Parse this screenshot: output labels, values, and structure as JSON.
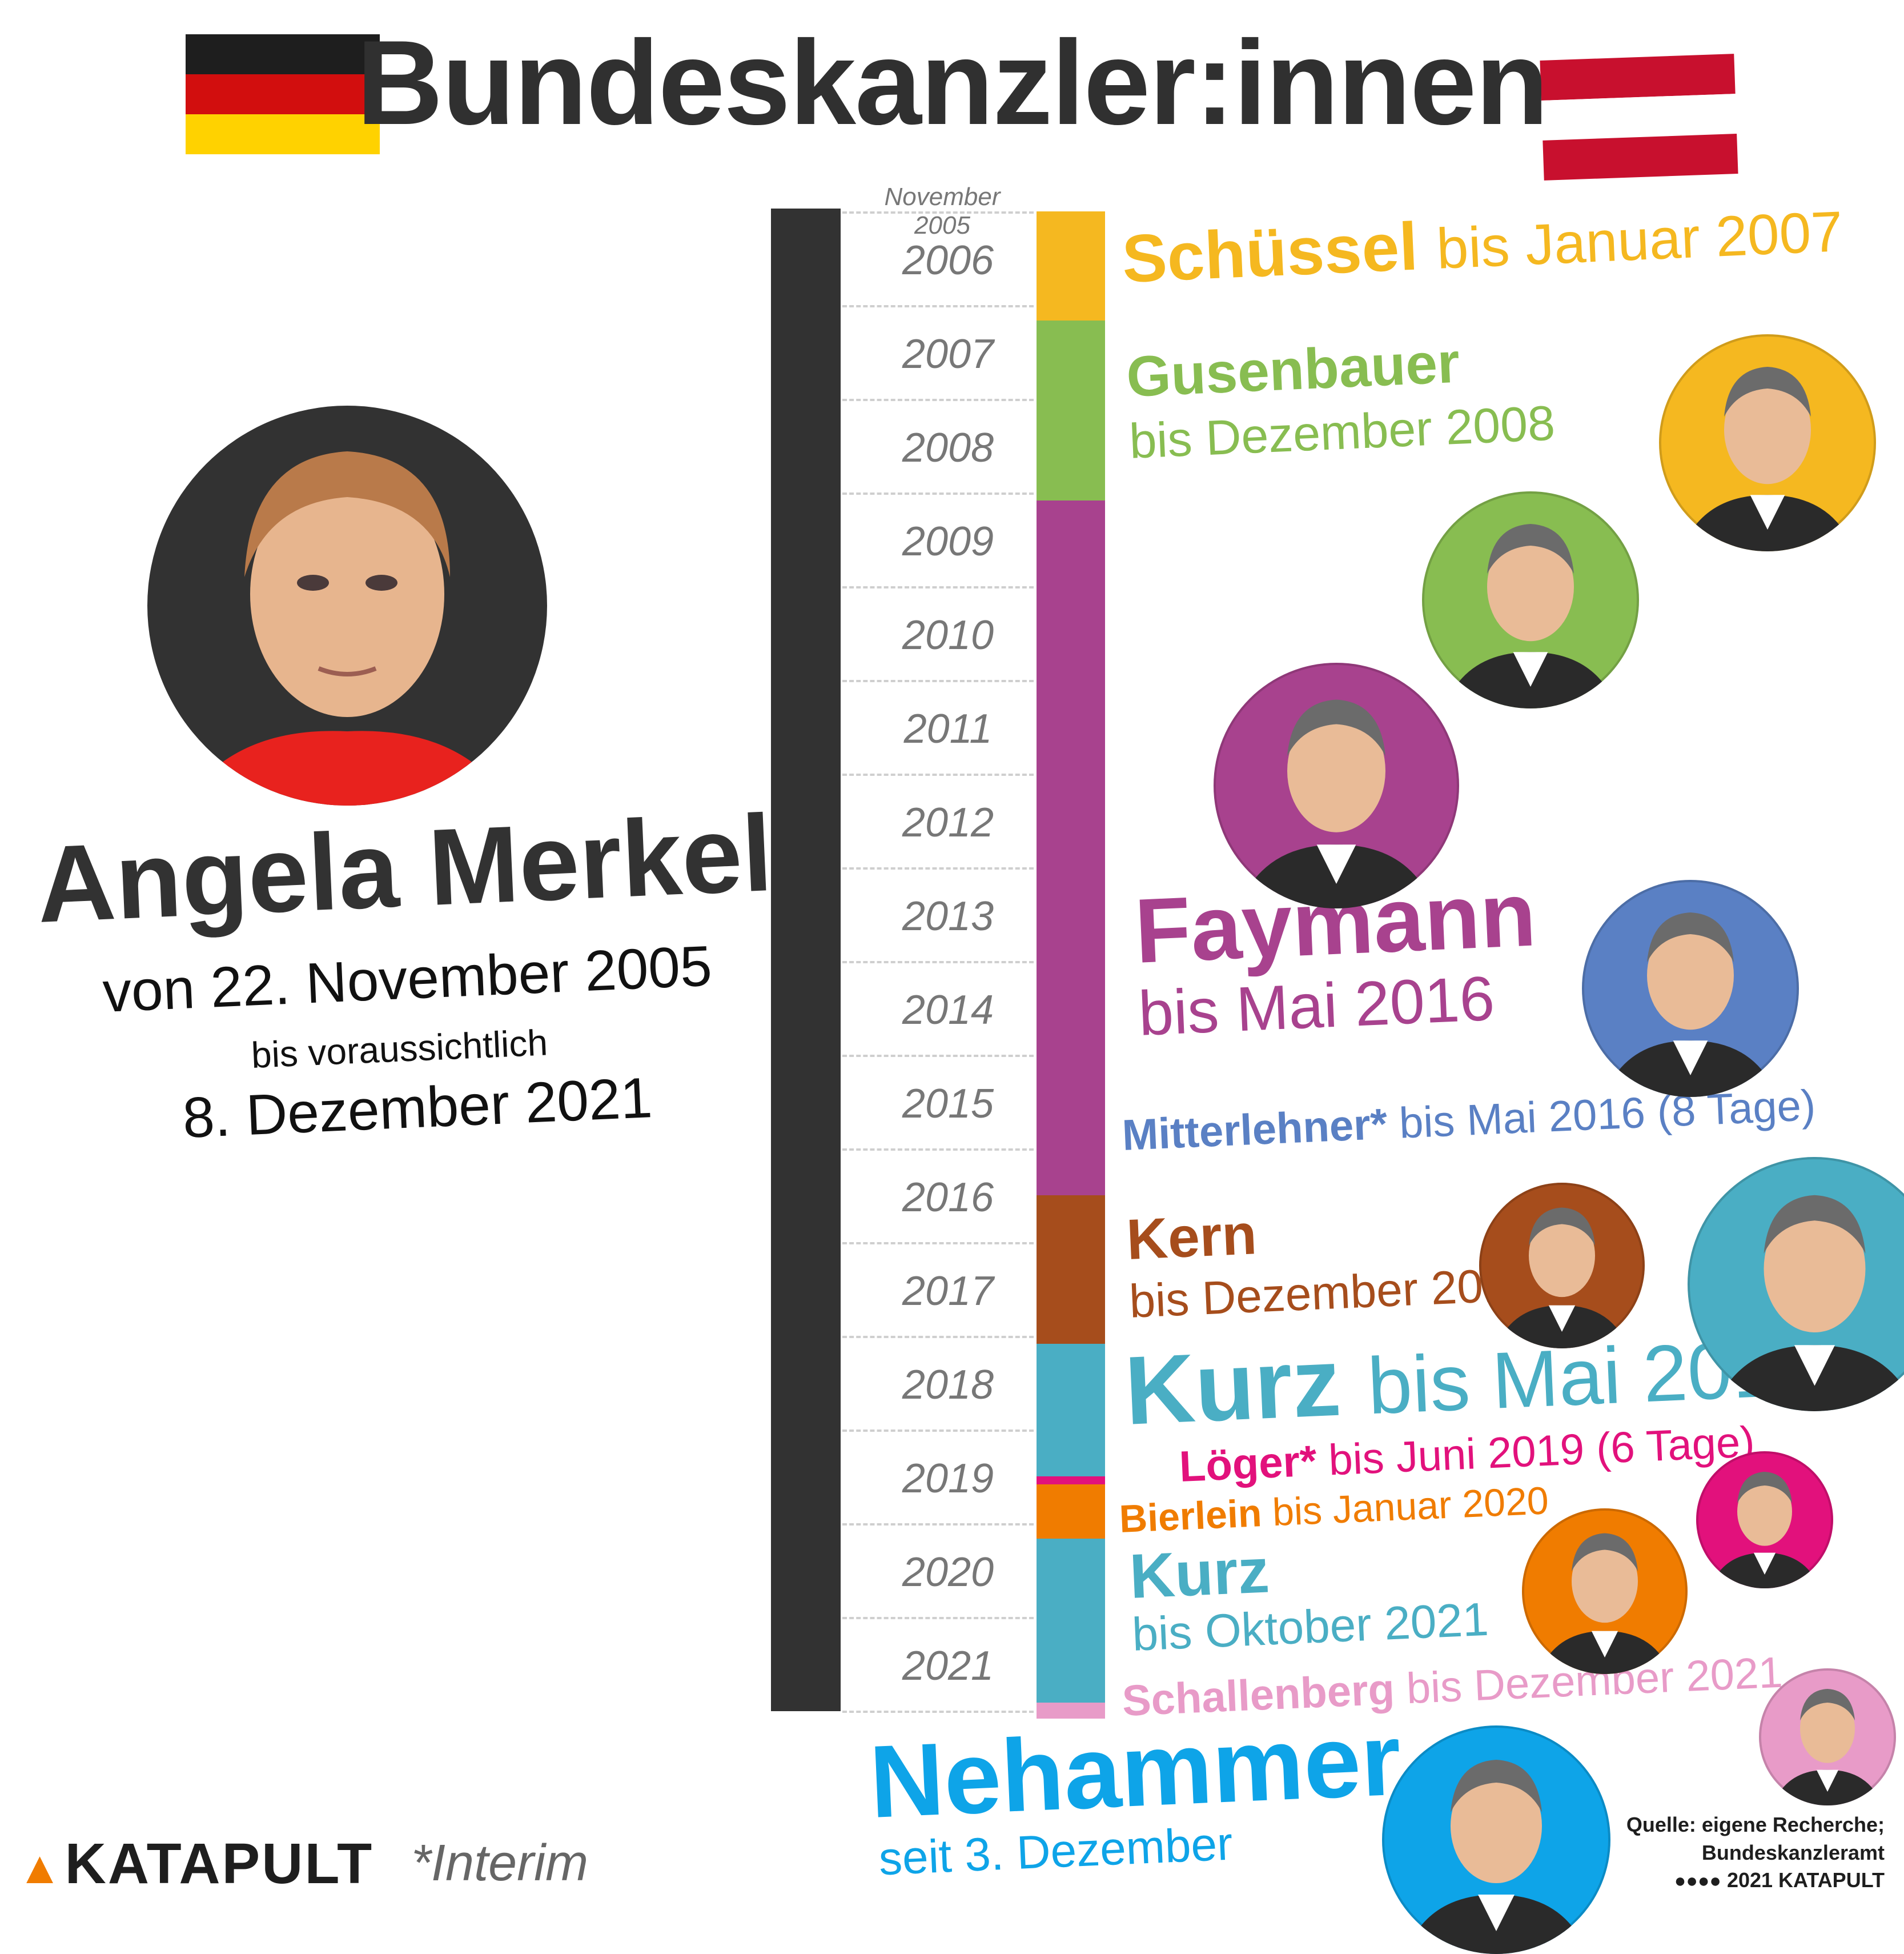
{
  "title": "Bundeskanzler:innen",
  "flags": {
    "germany": [
      "#1e1e1e",
      "#d20e0e",
      "#ffd200"
    ],
    "austria": [
      "#c8102e",
      "#ffffff",
      "#c8102e"
    ]
  },
  "timeline": {
    "start_label": "November 2005",
    "years": [
      "2006",
      "2007",
      "2008",
      "2009",
      "2010",
      "2011",
      "2012",
      "2013",
      "2014",
      "2015",
      "2016",
      "2017",
      "2018",
      "2019",
      "2020",
      "2021"
    ]
  },
  "germany": {
    "name": "Angela Merkel",
    "line1": "von 22. November 2005",
    "line2": "bis voraussichtlich",
    "line3": "8. Dezember 2021",
    "color": "#323232"
  },
  "chart_data": {
    "type": "bar",
    "title": "Bundeskanzler:innen",
    "x_axis": "years",
    "ylim": [
      "November 2005",
      "Dezember 2021"
    ],
    "series": [
      {
        "name": "Angela Merkel",
        "start": "2005-11",
        "end": "2021-12"
      },
      {
        "name": "Schüssel",
        "start": "2005-11",
        "end": "2007-01"
      },
      {
        "name": "Gusenbauer",
        "start": "2007-01",
        "end": "2008-12"
      },
      {
        "name": "Faymann",
        "start": "2008-12",
        "end": "2016-05"
      },
      {
        "name": "Mitterlehner*",
        "start": "2016-05",
        "end": "2016-05"
      },
      {
        "name": "Kern",
        "start": "2016-05",
        "end": "2017-12"
      },
      {
        "name": "Kurz",
        "start": "2017-12",
        "end": "2019-05"
      },
      {
        "name": "Löger*",
        "start": "2019-05",
        "end": "2019-06"
      },
      {
        "name": "Bierlein",
        "start": "2019-06",
        "end": "2020-01"
      },
      {
        "name": "Kurz",
        "start": "2020-01",
        "end": "2021-10"
      },
      {
        "name": "Schallenberg",
        "start": "2021-10",
        "end": "2021-12"
      },
      {
        "name": "Nehammer",
        "start": "2021-12",
        "end": ""
      }
    ]
  },
  "austria": [
    {
      "id": "schuessel",
      "name": "Schüssel",
      "period": "bis Januar 2007",
      "color": "#f5b820"
    },
    {
      "id": "gusenbauer",
      "name": "Gusenbauer",
      "period": "bis Dezember 2008",
      "color": "#88bd51"
    },
    {
      "id": "faymann",
      "name": "Faymann",
      "period": "bis Mai 2016",
      "color": "#a8428e"
    },
    {
      "id": "mitterlehner",
      "name": "Mitterlehner*",
      "period": "bis Mai 2016 (8 Tage)",
      "color": "#5a80c4"
    },
    {
      "id": "kern",
      "name": "Kern",
      "period": "bis Dezember 2017",
      "color": "#a64d1c"
    },
    {
      "id": "kurz1",
      "name": "Kurz",
      "period": "bis Mai 2019",
      "color": "#4aaec4"
    },
    {
      "id": "loeger",
      "name": "Löger*",
      "period": "bis Juni 2019 (6 Tage)",
      "color": "#e2117c"
    },
    {
      "id": "bierlein",
      "name": "Bierlein",
      "period": "bis Januar 2020",
      "color": "#f07c00"
    },
    {
      "id": "kurz2",
      "name": "Kurz",
      "period": "bis Oktober 2021",
      "color": "#4aaec4"
    },
    {
      "id": "schallenberg",
      "name": "Schallenberg",
      "period": "bis Dezember 2021",
      "color": "#e89bc8"
    },
    {
      "id": "nehammer",
      "name": "Nehammer",
      "period": "seit 3. Dezember",
      "color": "#0ea4e8"
    }
  ],
  "footer": {
    "brand": "KATAPULT",
    "interim_note": "*Interim",
    "source_line1": "Quelle: eigene Recherche;",
    "source_line2": "Bundeskanzleramt",
    "license": "2021 KATAPULT"
  }
}
